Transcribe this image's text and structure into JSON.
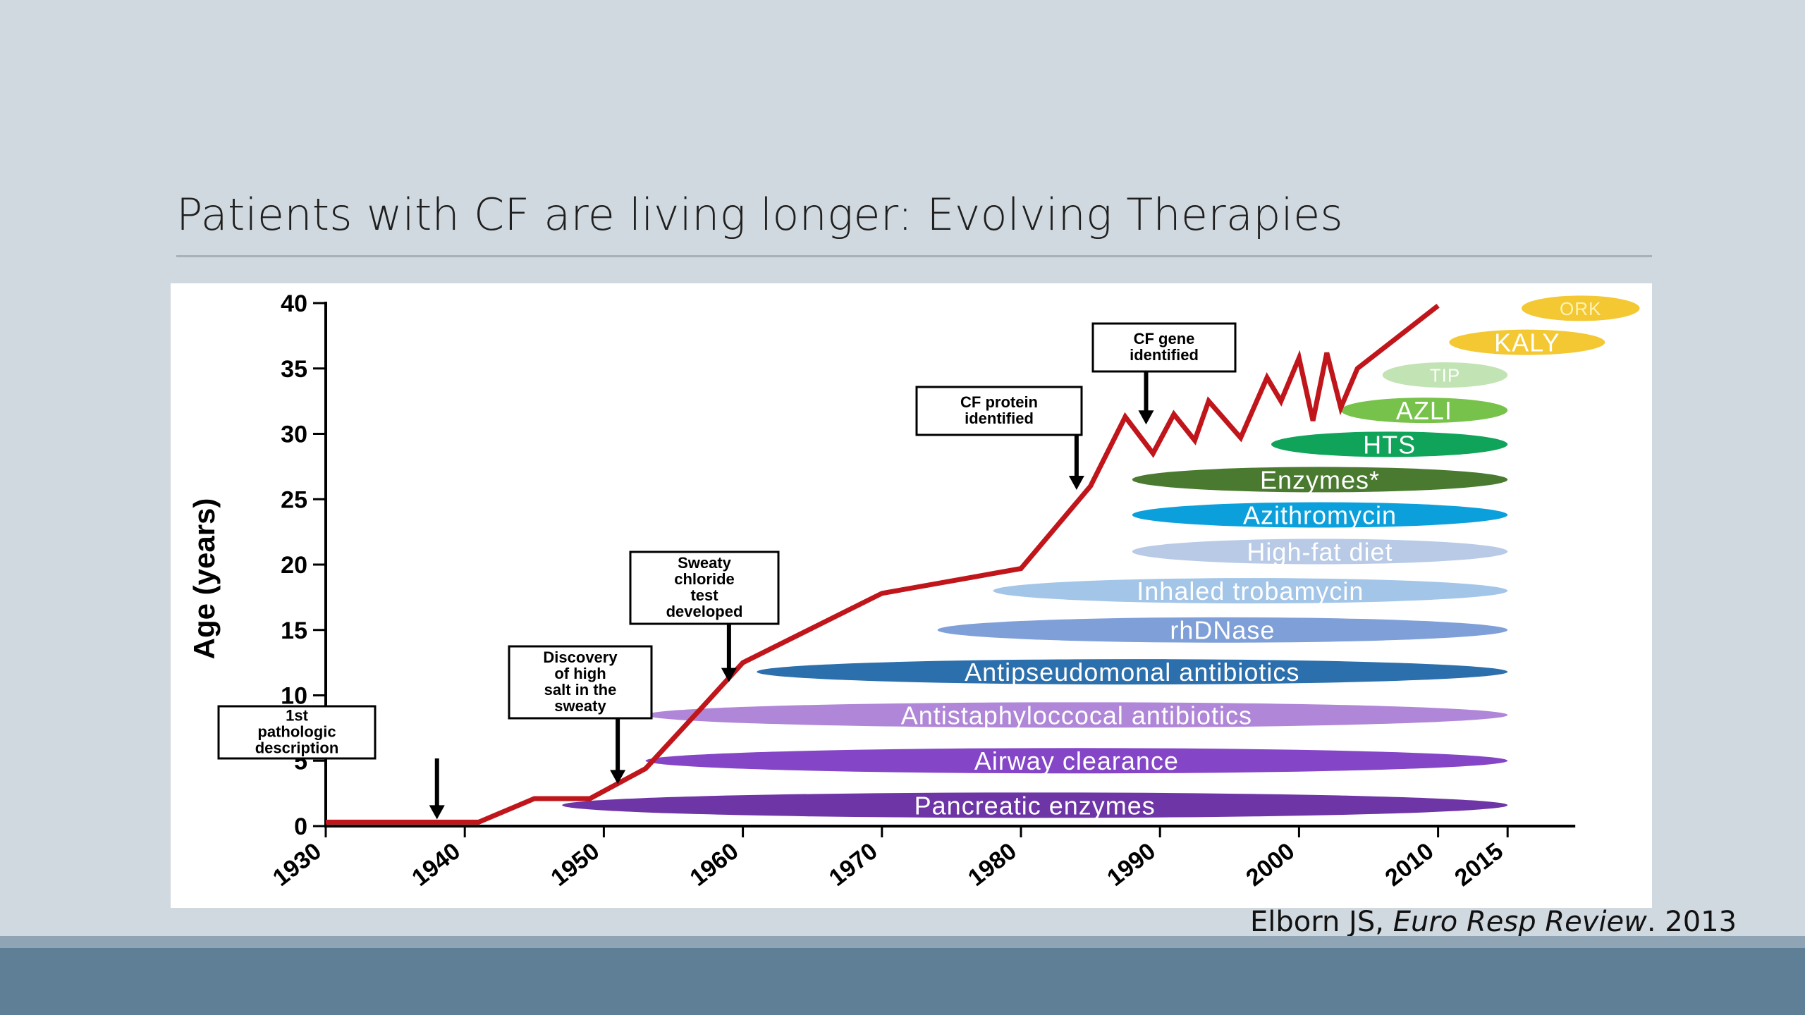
{
  "slide": {
    "title": "Patients with CF are living longer: Evolving Therapies",
    "citation": {
      "authors": "Elborn JS, ",
      "journal": "Euro Resp Review",
      "year": ". 2013"
    }
  },
  "chart_data": {
    "type": "line",
    "ylabel": "Age (years)",
    "xlabel": "",
    "ylim": [
      0,
      40
    ],
    "xlim": [
      1930,
      2015
    ],
    "x_ticks": [
      1930,
      1940,
      1950,
      1960,
      1970,
      1980,
      1990,
      2000,
      2010,
      2015
    ],
    "y_ticks": [
      0,
      5,
      10,
      15,
      20,
      25,
      30,
      35,
      40
    ],
    "series": [
      {
        "color": "#c0161b",
        "points": [
          [
            1930,
            0.3
          ],
          [
            1941,
            0.3
          ],
          [
            1945,
            2.1
          ],
          [
            1949,
            2.1
          ],
          [
            1953,
            4.4
          ],
          [
            1957,
            9.0
          ],
          [
            1960,
            12.5
          ],
          [
            1970,
            17.8
          ],
          [
            1980,
            19.7
          ],
          [
            1985,
            26.0
          ],
          [
            1987.5,
            31.3
          ],
          [
            1989.5,
            28.5
          ],
          [
            1991,
            31.5
          ],
          [
            1992.5,
            29.5
          ],
          [
            1993.5,
            32.5
          ],
          [
            1995.8,
            29.7
          ],
          [
            1997.7,
            34.3
          ],
          [
            1998.7,
            32.5
          ],
          [
            2000,
            35.8
          ],
          [
            2001,
            31.0
          ],
          [
            2002,
            36.2
          ],
          [
            2003,
            32.0
          ],
          [
            2004.2,
            35.0
          ],
          [
            2010,
            39.8
          ]
        ]
      }
    ],
    "annotations": [
      {
        "lines": [
          "1st",
          "pathologic",
          "description"
        ],
        "x": 1938,
        "y_arrow": 0.3
      },
      {
        "lines": [
          "Discovery",
          "of high",
          "salt in the",
          "sweaty"
        ],
        "x": 1951,
        "y_arrow": 3.0
      },
      {
        "lines": [
          "Sweaty",
          "chloride",
          "test",
          "developed"
        ],
        "x": 1959,
        "y_arrow": 10.8
      },
      {
        "lines": [
          "CF protein",
          "identified"
        ],
        "x": 1984,
        "y_arrow": 25.5
      },
      {
        "lines": [
          "CF gene",
          "identified"
        ],
        "x": 1989,
        "y_arrow": 30.5
      }
    ],
    "therapies": [
      {
        "label": "Pancreatic enzymes",
        "start": 1947,
        "end": 2015,
        "age": 1.6,
        "color": "#6e35a6",
        "text_color": "#ffffff"
      },
      {
        "label": "Airway clearance",
        "start": 1953,
        "end": 2015,
        "age": 5.0,
        "color": "#8446c6",
        "text_color": "#ffffff"
      },
      {
        "label": "Antistaphyloccocal antibiotics",
        "start": 1953,
        "end": 2015,
        "age": 8.5,
        "color": "#b086d8",
        "text_color": "#ffffff"
      },
      {
        "label": "Antipseudomonal antibiotics",
        "start": 1961,
        "end": 2015,
        "age": 11.8,
        "color": "#2c6fad",
        "text_color": "#ffffff"
      },
      {
        "label": "rhDNase",
        "start": 1974,
        "end": 2015,
        "age": 15.0,
        "color": "#7e9fd7",
        "text_color": "#ffffff"
      },
      {
        "label": "Inhaled trobamycin",
        "start": 1978,
        "end": 2015,
        "age": 18.0,
        "color": "#a3c5e8",
        "text_color": "#ffffff"
      },
      {
        "label": "High-fat diet",
        "start": 1988,
        "end": 2015,
        "age": 21.0,
        "color": "#b8cae6",
        "text_color": "#ffffff"
      },
      {
        "label": "Azithromycin",
        "start": 1988,
        "end": 2015,
        "age": 23.8,
        "color": "#0ba0dc",
        "text_color": "#ffffff"
      },
      {
        "label": "Enzymes*",
        "start": 1988,
        "end": 2015,
        "age": 26.5,
        "color": "#4a7a30",
        "text_color": "#ffffff"
      },
      {
        "label": "HTS",
        "start": 1998,
        "end": 2015,
        "age": 29.2,
        "color": "#10a35a",
        "text_color": "#ffffff"
      },
      {
        "label": "AZLI",
        "start": 2003,
        "end": 2015,
        "age": 31.8,
        "color": "#77c24a",
        "text_color": "#ffffff"
      },
      {
        "label": "TIP",
        "start": 2006,
        "end": 2015,
        "age": 34.5,
        "color": "#c2e3b4",
        "text_color": "#ffffff"
      },
      {
        "label": "KALY",
        "start": 2010.8,
        "end": 2022,
        "age": 37.0,
        "color": "#f3c832",
        "text_color": "#ffffff"
      },
      {
        "label": "ORK",
        "start": 2016,
        "end": 2024.5,
        "age": 39.6,
        "color": "#f3c832",
        "text_color": "#fff3b0"
      }
    ]
  }
}
